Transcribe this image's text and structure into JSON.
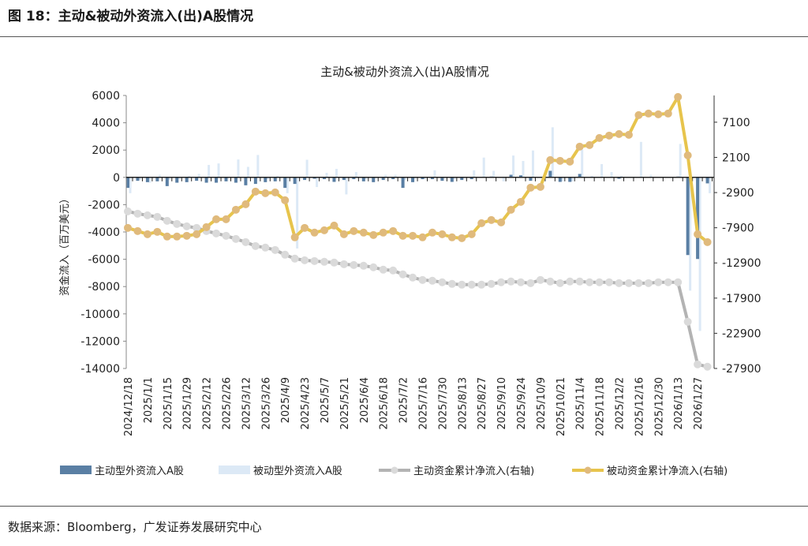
{
  "figure_title": "图 18：主动&被动外资流入(出)A股情况",
  "source": "数据来源：Bloomberg，广发证券发展研究中心",
  "colors": {
    "active": "#5a7fa4",
    "passive": "#dce9f6",
    "cum_active_line": "#b3b3b3",
    "cum_active_marker": "#dadada",
    "cum_passive_line": "#e7c44c",
    "cum_passive_marker": "#e0ba7c"
  },
  "chart_data": {
    "type": "bar+line",
    "title": "主动&被动外资流入(出)A股情况",
    "ylabel": "资金流入（百万美元）",
    "ylim": [
      -14000,
      6000
    ],
    "yticks": [
      6000,
      4000,
      2000,
      0,
      -2000,
      -4000,
      -6000,
      -8000,
      -10000,
      -12000,
      -14000
    ],
    "y2lim": [
      -27900,
      10900
    ],
    "y2ticks": [
      7100,
      2100,
      -2900,
      -7900,
      -12900,
      -17900,
      -22900,
      -27900
    ],
    "grid": false,
    "legend_position": "bottom",
    "x_tick_labels": [
      "2024/12/18",
      "2025/1/1",
      "2025/1/15",
      "2025/1/29",
      "2025/2/12",
      "2025/2/26",
      "2025/3/12",
      "2025/3/26",
      "2025/4/9",
      "2025/4/23",
      "2025/5/7",
      "2025/5/21",
      "2025/6/4",
      "2025/6/18",
      "2025/7/2",
      "2025/7/16",
      "2025/7/30",
      "2025/8/13",
      "2025/8/27",
      "2025/9/10",
      "2025/9/24",
      "2025/10/9",
      "2025/10/21",
      "2025/11/4",
      "2025/11/18",
      "2025/12/2",
      "2025/12/16",
      "2025/12/30",
      "2026/1/13",
      "2026/1/27"
    ],
    "series": [
      {
        "name": "主动型外资流入A股",
        "type": "bar",
        "axis": "left",
        "values": [
          -770,
          -250,
          -350,
          -290,
          -640,
          -390,
          -350,
          -250,
          -390,
          -390,
          -290,
          -390,
          -580,
          -480,
          -350,
          -290,
          -770,
          -480,
          -190,
          -100,
          -130,
          -330,
          -190,
          -130,
          -290,
          -350,
          -190,
          -130,
          -770,
          -350,
          -130,
          -130,
          -250,
          -330,
          -190,
          -130,
          0,
          60,
          0,
          190,
          150,
          -250,
          0,
          480,
          -330,
          -330,
          250,
          0,
          0,
          0,
          -100,
          0,
          0,
          0,
          0,
          0,
          60,
          -5690,
          -5980,
          -440
        ]
      },
      {
        "name": "被动型外资流入A股",
        "type": "bar",
        "axis": "left",
        "values": [
          -1160,
          -190,
          -390,
          190,
          -190,
          -100,
          100,
          250,
          910,
          1020,
          0,
          1310,
          770,
          1640,
          -130,
          100,
          -1160,
          -5210,
          1290,
          -710,
          330,
          620,
          -1250,
          390,
          -130,
          -60,
          190,
          190,
          -190,
          -100,
          -100,
          520,
          -60,
          -130,
          -60,
          520,
          1450,
          480,
          -290,
          1600,
          1200,
          1970,
          0,
          3670,
          -290,
          -290,
          2030,
          130,
          970,
          390,
          130,
          0,
          2600,
          190,
          0,
          0,
          2450,
          -8300,
          -11250,
          -1160
        ]
      },
      {
        "name": "主动资金累计净流入(右轴)",
        "type": "line",
        "axis": "right",
        "values": [
          -5570,
          -5900,
          -6130,
          -6350,
          -6910,
          -7360,
          -7700,
          -7920,
          -8370,
          -8710,
          -9040,
          -9490,
          -9940,
          -10500,
          -10720,
          -11060,
          -11730,
          -12290,
          -12520,
          -12630,
          -12740,
          -12850,
          -13080,
          -13190,
          -13300,
          -13520,
          -13860,
          -13970,
          -14530,
          -14980,
          -15320,
          -15430,
          -15650,
          -15880,
          -15990,
          -15990,
          -15990,
          -15880,
          -15650,
          -15540,
          -15650,
          -15770,
          -15320,
          -15540,
          -15770,
          -15540,
          -15540,
          -15650,
          -15650,
          -15650,
          -15770,
          -15770,
          -15770,
          -15770,
          -15650,
          -15650,
          -15650,
          -21260,
          -27320,
          -27650
        ]
      },
      {
        "name": "被动资金累计净流入(右轴)",
        "type": "line",
        "axis": "right",
        "values": [
          -7920,
          -8370,
          -8820,
          -8480,
          -9150,
          -9150,
          -9040,
          -8820,
          -7810,
          -6690,
          -6690,
          -5340,
          -4560,
          -2760,
          -2990,
          -2880,
          -3990,
          -9260,
          -7920,
          -8590,
          -8260,
          -7590,
          -8820,
          -8370,
          -8590,
          -8930,
          -8590,
          -8370,
          -9040,
          -9040,
          -9260,
          -8590,
          -8820,
          -9260,
          -9380,
          -8820,
          -7250,
          -6800,
          -7140,
          -5340,
          -4220,
          -2200,
          -2090,
          1720,
          1610,
          1500,
          3630,
          3850,
          4860,
          5200,
          5420,
          5310,
          8110,
          8330,
          8220,
          8330,
          10690,
          2390,
          -8820,
          -9940
        ]
      }
    ]
  }
}
